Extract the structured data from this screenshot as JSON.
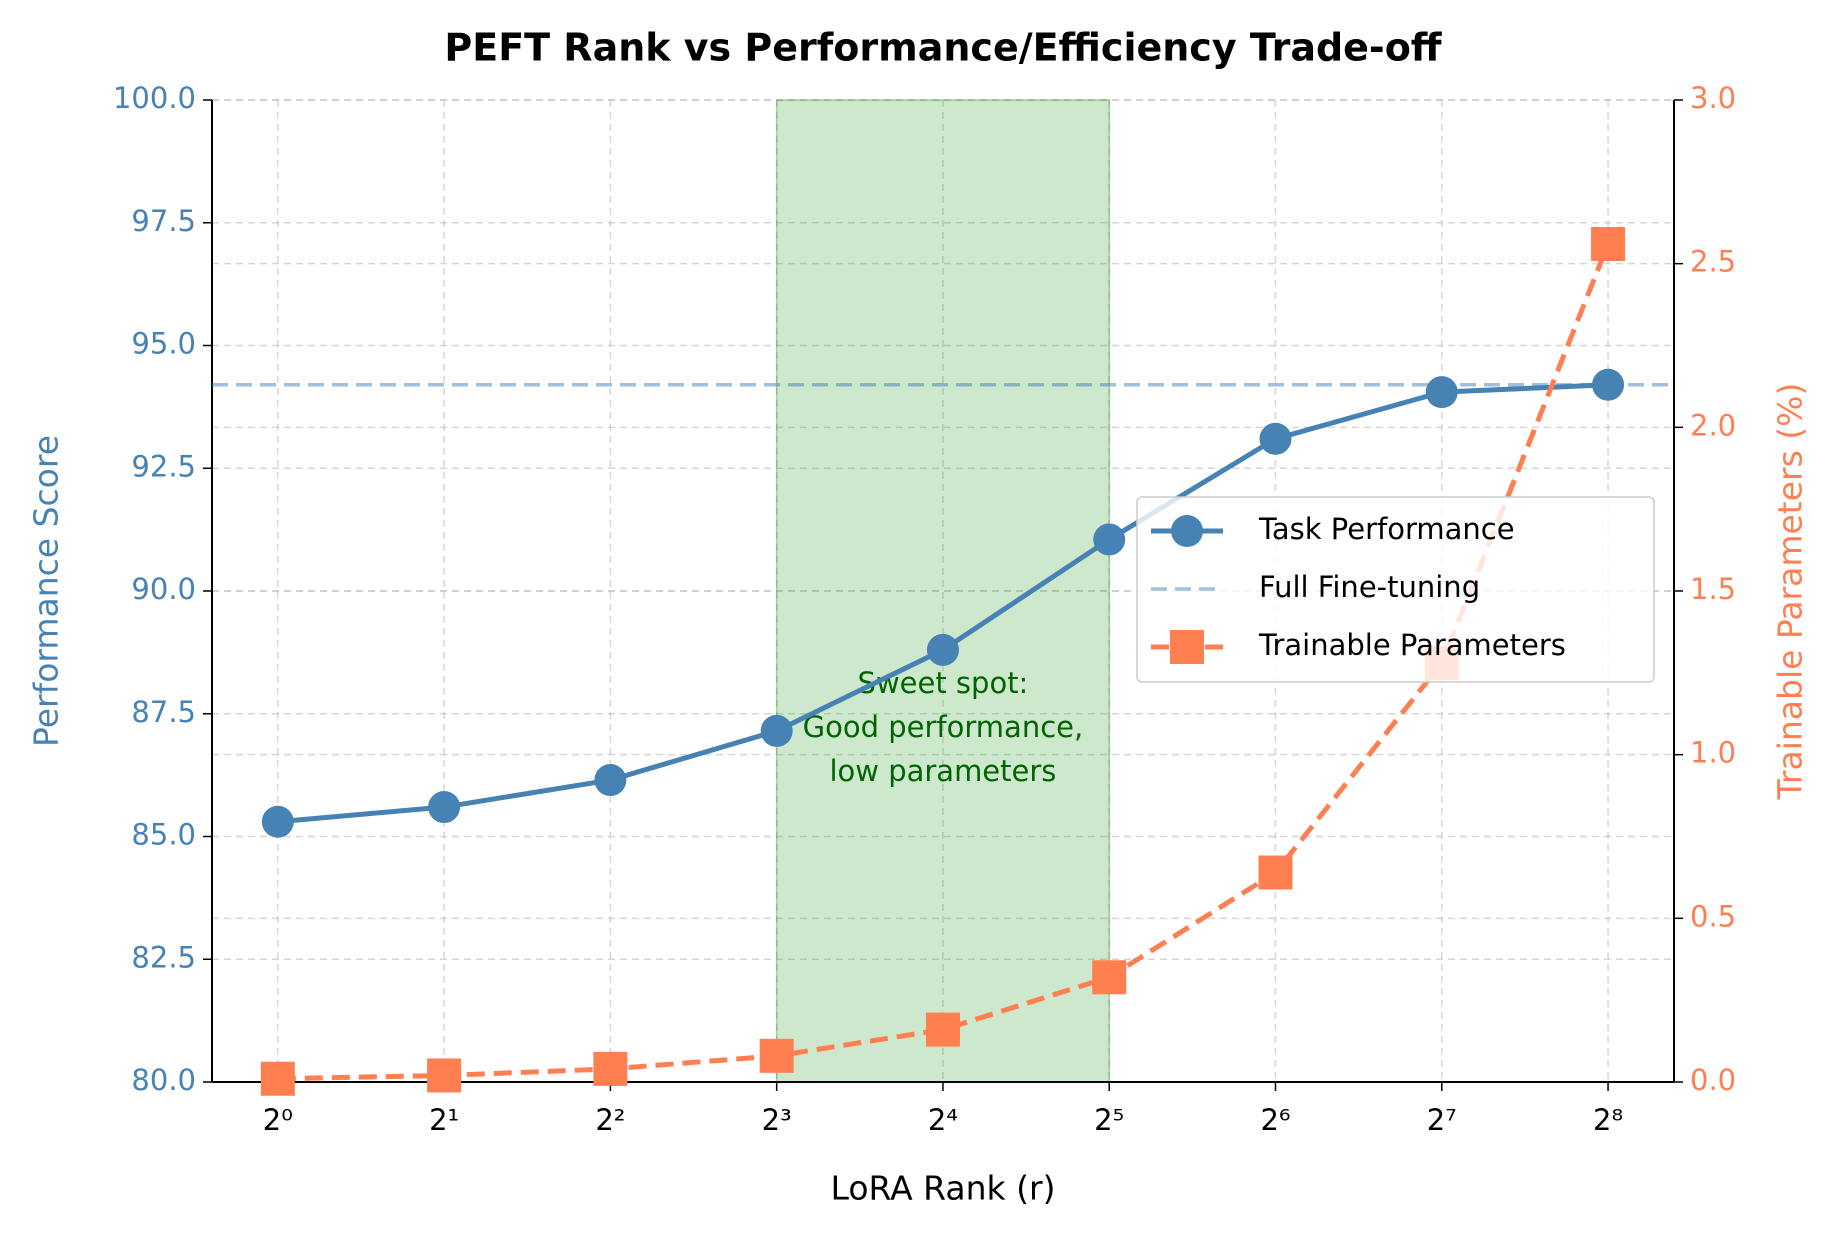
{
  "chart_data": {
    "type": "line",
    "title": "PEFT Rank vs Performance/Efficiency Trade-off",
    "x_label": "LoRA Rank (r)",
    "y_label": "Performance Score",
    "y2_label": "Trainable Parameters (%)",
    "x": [
      1,
      2,
      4,
      8,
      16,
      32,
      64,
      128,
      256
    ],
    "xscale": "log",
    "xbase": 2,
    "xlim": [
      0.76,
      337
    ],
    "xticks": [
      {
        "value": 1,
        "label": "2⁰"
      },
      {
        "value": 2,
        "label": "2¹"
      },
      {
        "value": 4,
        "label": "2²"
      },
      {
        "value": 8,
        "label": "2³"
      },
      {
        "value": 16,
        "label": "2⁴"
      },
      {
        "value": 32,
        "label": "2⁵"
      },
      {
        "value": 64,
        "label": "2⁶"
      },
      {
        "value": 128,
        "label": "2⁷"
      },
      {
        "value": 256,
        "label": "2⁸"
      }
    ],
    "ylim": [
      80,
      100
    ],
    "yticks": [
      {
        "value": 80,
        "label": "80.0"
      },
      82.5,
      {
        "value": 85,
        "label": "85.0"
      },
      87.5,
      {
        "value": 90,
        "label": "90.0"
      },
      92.5,
      {
        "value": 95,
        "label": "95.0"
      },
      97.5,
      {
        "value": 100,
        "label": "100.0"
      }
    ],
    "y2lim": [
      0,
      3
    ],
    "y2ticks": [
      {
        "value": 0,
        "label": "0.0"
      },
      0.5,
      {
        "value": 1,
        "label": "1.0"
      },
      1.5,
      {
        "value": 2,
        "label": "2.0"
      },
      2.5,
      {
        "value": 3,
        "label": "3.0"
      }
    ],
    "grid": true,
    "legend": "center right",
    "series": [
      {
        "name": "Task Performance",
        "color": "#4682b4",
        "marker": "circle",
        "linestyle": "solid",
        "values": [
          85.3,
          85.6,
          86.15,
          87.15,
          88.8,
          91.05,
          93.1,
          94.05,
          94.2
        ]
      },
      {
        "name": "Trainable Parameters",
        "color": "#ff7f50",
        "marker": "square",
        "linestyle": "dashed",
        "axis": "y2",
        "values": [
          0.01,
          0.02,
          0.04,
          0.08,
          0.16,
          0.32,
          0.64,
          1.28,
          2.56
        ]
      }
    ],
    "reference": {
      "name": "Full Fine-tuning",
      "value": 94.2,
      "color": "#4682b4"
    },
    "highlight": {
      "xmin": 8,
      "xmax": 32,
      "color": "#2ca02c"
    },
    "annotation": [
      "Sweet spot:",
      "Good performance,",
      "low parameters"
    ],
    "annotation_color": "#006400"
  }
}
